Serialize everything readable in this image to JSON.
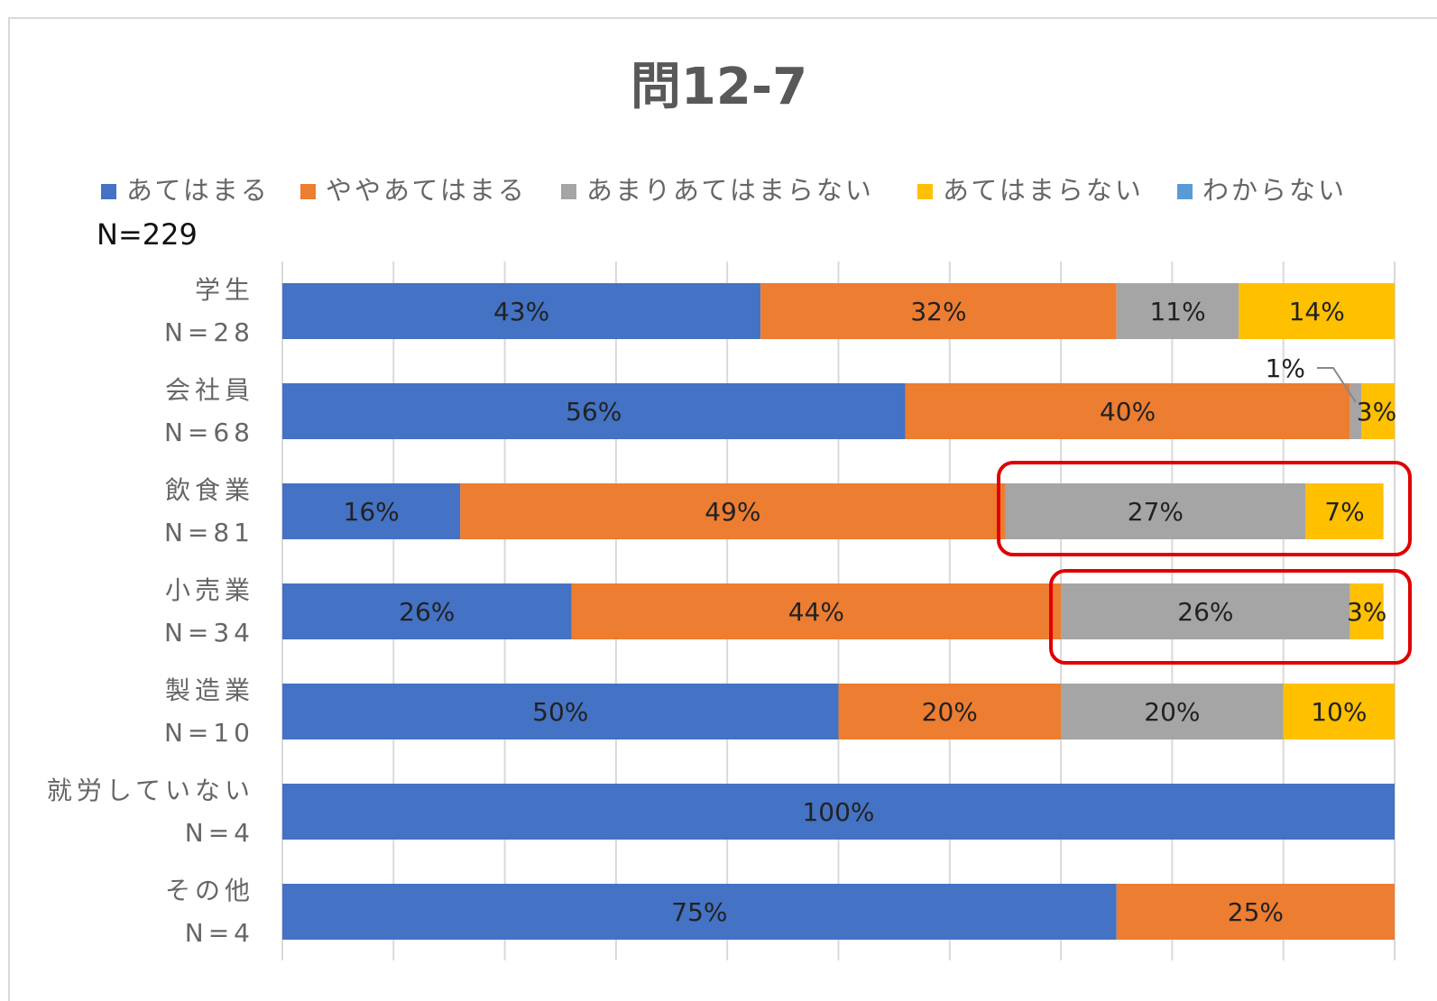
{
  "chart_data": {
    "type": "stacked_bar_horizontal",
    "title": "問12-7",
    "annotation": "N=229",
    "categories": [
      "学生",
      "会社員",
      "飲食業",
      "小売業",
      "製造業",
      "就労していない",
      "その他"
    ],
    "category_notes": [
      "N=28",
      "N=68",
      "N=81",
      "N=34",
      "N=10",
      "N=4",
      "N=4"
    ],
    "series": [
      {
        "name": "あてはまる",
        "color": "#4472c4",
        "values": [
          43,
          56,
          16,
          26,
          50,
          100,
          75
        ],
        "value_labels": [
          "43%",
          "56%",
          "16%",
          "26%",
          "50%",
          "100%",
          "75%"
        ]
      },
      {
        "name": "ややあてはまる",
        "color": "#ed7d31",
        "values": [
          32,
          40,
          49,
          44,
          20,
          0,
          25
        ],
        "value_labels": [
          "32%",
          "40%",
          "49%",
          "44%",
          "20%",
          null,
          "25%"
        ]
      },
      {
        "name": "あまりあてはまらない",
        "color": "#a5a5a5",
        "values": [
          11,
          1,
          27,
          26,
          20,
          0,
          0
        ],
        "value_labels": [
          "11%",
          "1%",
          "27%",
          "26%",
          "20%",
          null,
          null
        ]
      },
      {
        "name": "あてはまらない",
        "color": "#ffc000",
        "values": [
          14,
          3,
          7,
          3,
          10,
          0,
          0
        ],
        "value_labels": [
          "14%",
          "3%",
          "7%",
          "3%",
          "10%",
          null,
          null
        ]
      },
      {
        "name": "わからない",
        "color": "#5b9bd5",
        "values": [
          0,
          0,
          0,
          0,
          0,
          0,
          0
        ],
        "value_labels": [
          null,
          null,
          null,
          null,
          null,
          null,
          null
        ]
      }
    ],
    "xlim": [
      0,
      100
    ],
    "xticks": [
      0,
      10,
      20,
      30,
      40,
      50,
      60,
      70,
      80,
      90,
      100
    ],
    "grid": true
  }
}
